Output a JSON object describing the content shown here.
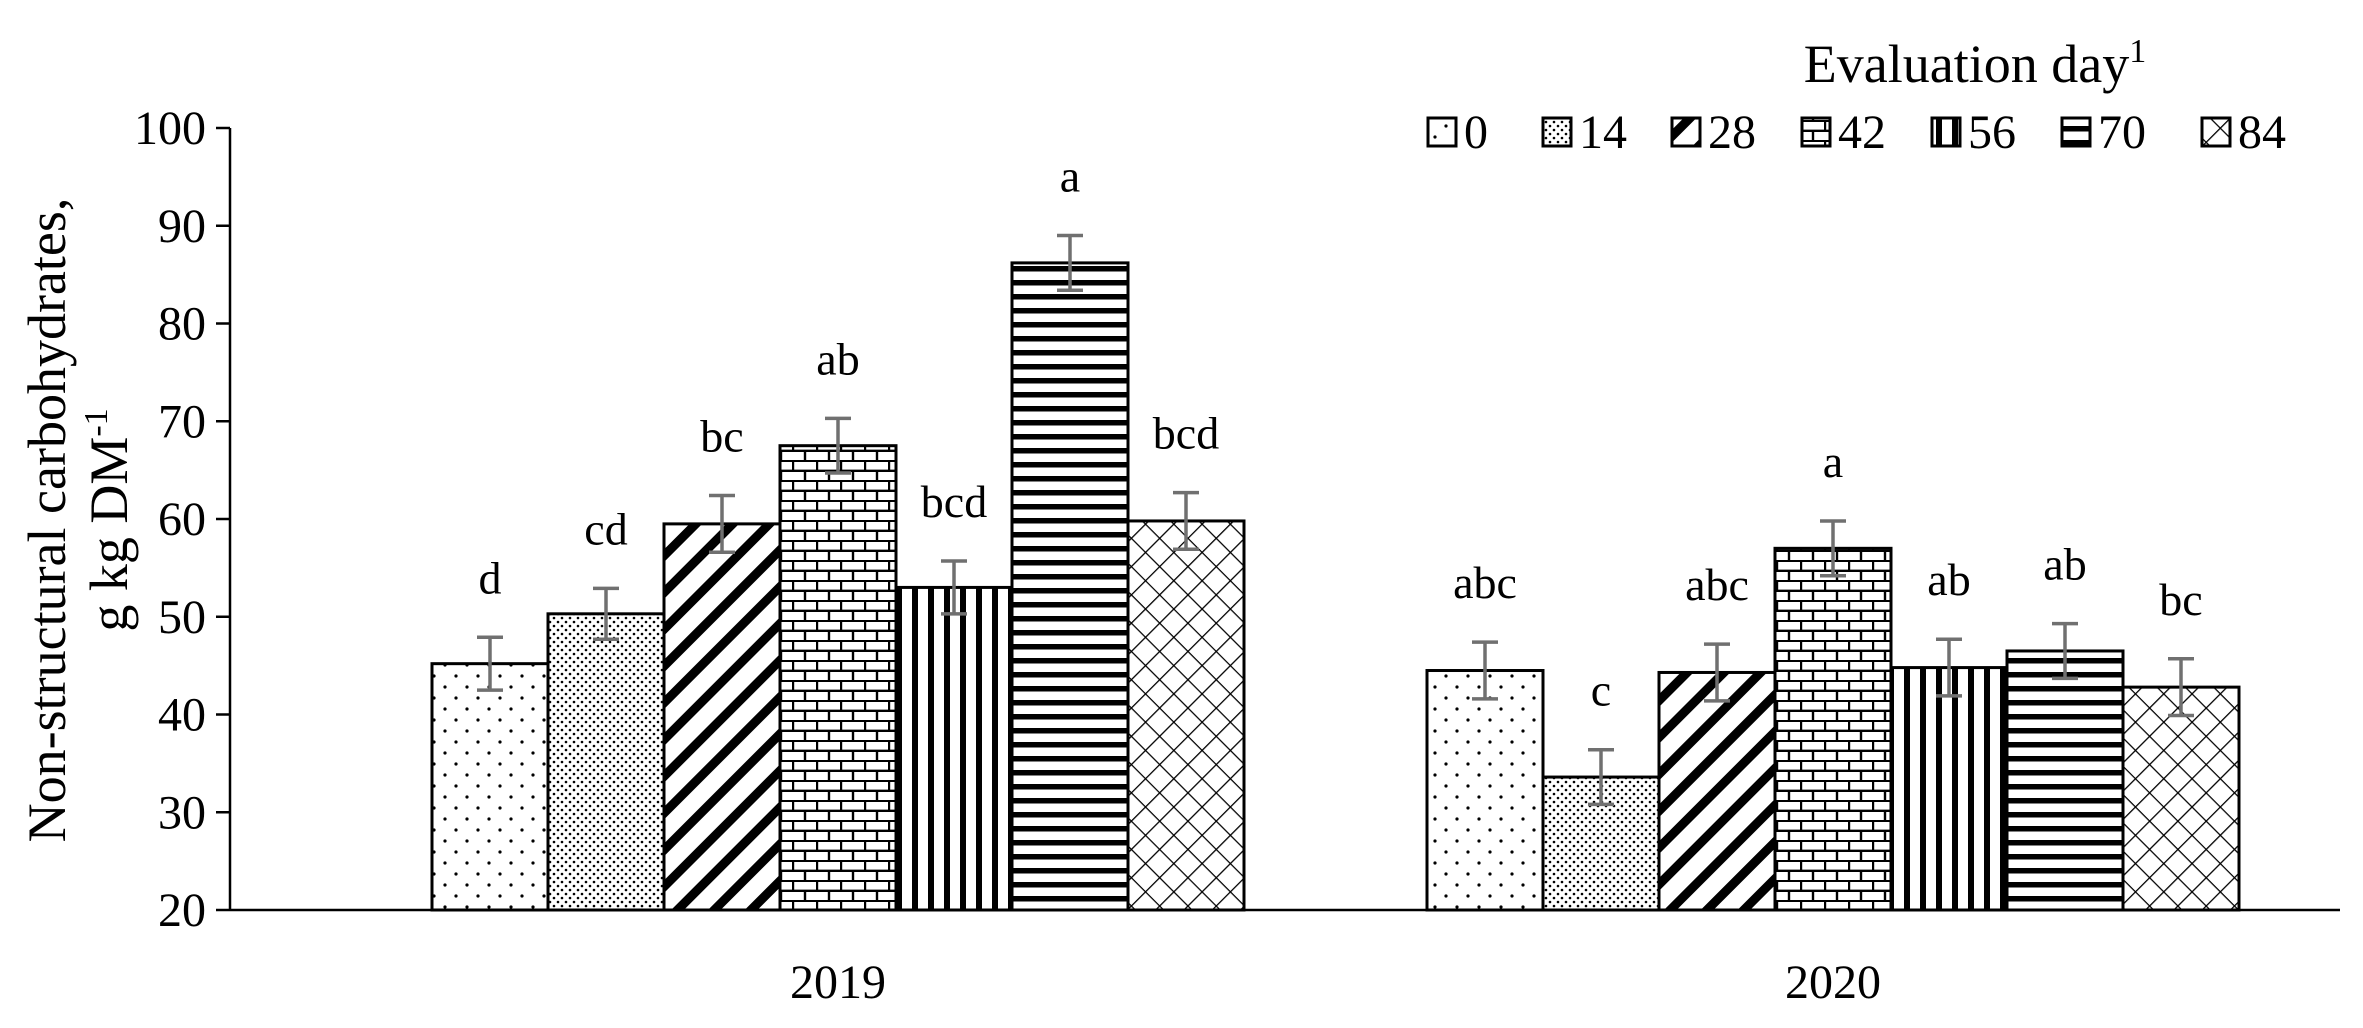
{
  "chart_data": {
    "type": "bar",
    "title": "",
    "ylabel_line1": "Non-structural carbohydrates,",
    "ylabel_line2_text": "g kg DM",
    "ylabel_line2_sup": "-1",
    "xlabel": "",
    "ylim": [
      20,
      100
    ],
    "yticks": [
      20,
      30,
      40,
      50,
      60,
      70,
      80,
      90,
      100
    ],
    "categories": [
      "2019",
      "2020"
    ],
    "legend_title": "Evaluation day",
    "legend_title_sup": "1",
    "legend_position": "top-right",
    "series": [
      {
        "name": "0",
        "pattern": "dots-sparse",
        "values": [
          45.2,
          44.5
        ],
        "errors": [
          2.7,
          2.9
        ],
        "labels": [
          "d",
          "abc"
        ]
      },
      {
        "name": "14",
        "pattern": "dots-dense",
        "values": [
          50.3,
          33.6
        ],
        "errors": [
          2.6,
          2.8
        ],
        "labels": [
          "cd",
          "c"
        ]
      },
      {
        "name": "28",
        "pattern": "diagonal",
        "values": [
          59.5,
          44.3
        ],
        "errors": [
          2.9,
          2.9
        ],
        "labels": [
          "bc",
          "abc"
        ]
      },
      {
        "name": "42",
        "pattern": "brick",
        "values": [
          67.5,
          57.0
        ],
        "errors": [
          2.8,
          2.8
        ],
        "labels": [
          "ab",
          "a"
        ]
      },
      {
        "name": "56",
        "pattern": "vertical",
        "values": [
          53.0,
          44.8
        ],
        "errors": [
          2.7,
          2.9
        ],
        "labels": [
          "bcd",
          "ab"
        ]
      },
      {
        "name": "70",
        "pattern": "horizontal",
        "values": [
          86.2,
          46.5
        ],
        "errors": [
          2.8,
          2.8
        ],
        "labels": [
          "a",
          "ab"
        ]
      },
      {
        "name": "84",
        "pattern": "crosshatch",
        "values": [
          59.8,
          42.8
        ],
        "errors": [
          2.9,
          2.9
        ],
        "labels": [
          "bcd",
          "bc"
        ]
      }
    ]
  }
}
